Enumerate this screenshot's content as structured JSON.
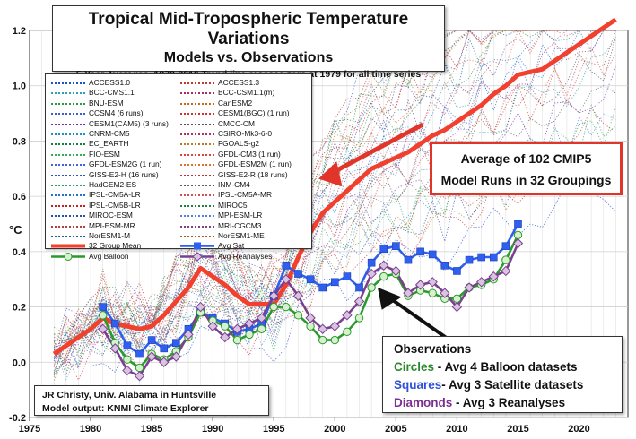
{
  "title": {
    "line1": "Tropical Mid-Tropospheric Temperature Variations",
    "line2": "Models vs. Observations",
    "line3": "5-Year Averages, 1979-2016 Trend line crosses zero at 1979 for all time series"
  },
  "y_unit": "°C",
  "legend": {
    "models": [
      {
        "name": "ACCESS1.0",
        "color": "#1f4fd0"
      },
      {
        "name": "ACCESS1.3",
        "color": "#c0392b"
      },
      {
        "name": "BCC-CMS1.1",
        "color": "#2aa0b0"
      },
      {
        "name": "BCC-CSM1.1(m)",
        "color": "#a02c60"
      },
      {
        "name": "BNU-ESM",
        "color": "#2e9a3c"
      },
      {
        "name": "CanESM2",
        "color": "#c06a1a"
      },
      {
        "name": "CCSM4 (6 runs)",
        "color": "#3b5bd0"
      },
      {
        "name": "CESM1(BGC) (1 run)",
        "color": "#d03030"
      },
      {
        "name": "CESM1(CAM5) (3 runs)",
        "color": "#7a2ab0"
      },
      {
        "name": "CMCC-CM",
        "color": "#555555"
      },
      {
        "name": "CNRM-CM5",
        "color": "#2090c0"
      },
      {
        "name": "CSIRO-Mk3-6-0",
        "color": "#b03060"
      },
      {
        "name": "EC_EARTH",
        "color": "#108040"
      },
      {
        "name": "FGOALS-g2",
        "color": "#b08020"
      },
      {
        "name": "FIO-ESM",
        "color": "#2eb050"
      },
      {
        "name": "GFDL-CM3 (1 run)",
        "color": "#e04040"
      },
      {
        "name": "GFDL-ESM2G (1 run)",
        "color": "#4060e0"
      },
      {
        "name": "GFDL-ESM2M (1 run)",
        "color": "#e07030"
      },
      {
        "name": "GISS-E2-H (16 runs)",
        "color": "#3050c0"
      },
      {
        "name": "GISS-E2-R (18 runs)",
        "color": "#c03040"
      },
      {
        "name": "HadGEM2-ES",
        "color": "#30a060"
      },
      {
        "name": "INM-CM4",
        "color": "#606060"
      },
      {
        "name": "IPSL-CM5A-LR",
        "color": "#2070d0"
      },
      {
        "name": "IPSL-CM5A-MR",
        "color": "#d05050"
      },
      {
        "name": "IPSL-CM5B-LR",
        "color": "#c02020"
      },
      {
        "name": "MIROC5",
        "color": "#208040"
      },
      {
        "name": "MIROC-ESM",
        "color": "#2050b0"
      },
      {
        "name": "MPI-ESM-LR",
        "color": "#5080e0"
      },
      {
        "name": "MPI-ESM-MR",
        "color": "#b04040"
      },
      {
        "name": "MRI-CGCM3",
        "color": "#804080"
      },
      {
        "name": "NorESM1-M",
        "color": "#2060a0"
      },
      {
        "name": "NorESM1-ME",
        "color": "#a06020"
      }
    ],
    "summary": [
      {
        "name": "32 Group Mean",
        "color": "#f2402e",
        "kind": "line"
      },
      {
        "name": "Avg Sat",
        "color": "#2f5ff0",
        "kind": "square"
      },
      {
        "name": "Avg Balloon",
        "color": "#2a9a2a",
        "kind": "circle"
      },
      {
        "name": "Avg Reanalyses",
        "color": "#7b3f8f",
        "kind": "diamond"
      }
    ]
  },
  "annotations": {
    "avg_box": [
      "Average of 102 CMIP5",
      "Model Runs in 32 Groupings"
    ],
    "observations": {
      "heading": "Observations",
      "lines": [
        {
          "key": "Circles",
          "text": " - Avg 4 Balloon datasets",
          "color": "#2a8a2a"
        },
        {
          "key": "Squares",
          "text": "- Avg 3 Satellite datasets",
          "color": "#2f4fd8"
        },
        {
          "key": "Diamonds",
          "text": " - Avg 3 Reanalyses",
          "color": "#7b2f8f"
        }
      ]
    },
    "credit": [
      "JR Christy, Univ. Alabama in Huntsville",
      "Model output: KNMI Climate Explorer"
    ]
  },
  "chart_data": {
    "type": "line",
    "xlim": [
      1975,
      2024
    ],
    "ylim": [
      -0.2,
      1.2
    ],
    "x_ticks": [
      "1975",
      "1980",
      "1985",
      "1990",
      "1995",
      "2000",
      "2005",
      "2010",
      "2015",
      "2020"
    ],
    "y_ticks": [
      "-0.2",
      "0.0",
      "0.2",
      "0.4",
      "0.6",
      "0.8",
      "1.0",
      "1.2"
    ],
    "grid": true,
    "series": [
      {
        "name": "32 Group Mean",
        "color": "#f2402e",
        "x": [
          1977,
          1978,
          1979,
          1980,
          1981,
          1982,
          1983,
          1984,
          1985,
          1986,
          1987,
          1988,
          1989,
          1990,
          1991,
          1992,
          1993,
          1994,
          1995,
          1996,
          1997,
          1998,
          1999,
          2000,
          2001,
          2002,
          2003,
          2004,
          2005,
          2006,
          2007,
          2008,
          2009,
          2010,
          2011,
          2012,
          2013,
          2014,
          2015,
          2016,
          2017,
          2018,
          2019,
          2020,
          2021,
          2022,
          2023
        ],
        "values": [
          0.03,
          0.06,
          0.09,
          0.12,
          0.16,
          0.14,
          0.13,
          0.12,
          0.13,
          0.17,
          0.22,
          0.27,
          0.34,
          0.31,
          0.28,
          0.24,
          0.21,
          0.21,
          0.21,
          0.28,
          0.38,
          0.47,
          0.54,
          0.58,
          0.62,
          0.66,
          0.7,
          0.72,
          0.74,
          0.76,
          0.79,
          0.82,
          0.84,
          0.87,
          0.9,
          0.93,
          0.97,
          1.0,
          1.04,
          1.05,
          1.06,
          1.09,
          1.12,
          1.15,
          1.18,
          1.21,
          1.24
        ]
      },
      {
        "name": "Avg Sat",
        "color": "#2f5ff0",
        "marker": "square",
        "x": [
          1981,
          1982,
          1983,
          1984,
          1985,
          1986,
          1987,
          1988,
          1989,
          1990,
          1991,
          1992,
          1993,
          1994,
          1995,
          1996,
          1997,
          1998,
          1999,
          2000,
          2001,
          2002,
          2003,
          2004,
          2005,
          2006,
          2007,
          2008,
          2009,
          2010,
          2011,
          2012,
          2013,
          2014,
          2015
        ],
        "values": [
          0.2,
          0.14,
          0.06,
          0.03,
          0.08,
          0.05,
          0.07,
          0.12,
          0.18,
          0.16,
          0.14,
          0.11,
          0.12,
          0.14,
          0.24,
          0.35,
          0.32,
          0.3,
          0.27,
          0.29,
          0.31,
          0.27,
          0.36,
          0.41,
          0.42,
          0.37,
          0.4,
          0.39,
          0.35,
          0.33,
          0.37,
          0.38,
          0.38,
          0.42,
          0.5
        ]
      },
      {
        "name": "Avg Balloon",
        "color": "#2a9a2a",
        "marker": "circle",
        "x": [
          1981,
          1982,
          1983,
          1984,
          1985,
          1986,
          1987,
          1988,
          1989,
          1990,
          1991,
          1992,
          1993,
          1994,
          1995,
          1996,
          1997,
          1998,
          1999,
          2000,
          2001,
          2002,
          2003,
          2004,
          2005,
          2006,
          2007,
          2008,
          2009,
          2010,
          2011,
          2012,
          2013,
          2014,
          2015
        ],
        "values": [
          0.17,
          0.07,
          0.01,
          -0.02,
          0.03,
          0.01,
          0.04,
          0.09,
          0.18,
          0.15,
          0.13,
          0.08,
          0.1,
          0.12,
          0.2,
          0.2,
          0.17,
          0.13,
          0.08,
          0.08,
          0.11,
          0.16,
          0.27,
          0.31,
          0.32,
          0.24,
          0.26,
          0.25,
          0.23,
          0.23,
          0.27,
          0.28,
          0.3,
          0.37,
          0.46
        ]
      },
      {
        "name": "Avg Reanalyses",
        "color": "#7b3f8f",
        "marker": "diamond",
        "x": [
          1981,
          1982,
          1983,
          1984,
          1985,
          1986,
          1987,
          1988,
          1989,
          1990,
          1991,
          1992,
          1993,
          1994,
          1995,
          1996,
          1997,
          1998,
          1999,
          2000,
          2001,
          2002,
          2003,
          2004,
          2005,
          2006,
          2007,
          2008,
          2009,
          2010,
          2011,
          2012,
          2013,
          2014,
          2015
        ],
        "values": [
          0.12,
          0.05,
          -0.03,
          -0.05,
          0.02,
          0.0,
          0.02,
          0.1,
          0.2,
          0.13,
          0.09,
          0.12,
          0.14,
          0.16,
          0.24,
          0.3,
          0.24,
          0.16,
          0.12,
          0.13,
          0.17,
          0.22,
          0.32,
          0.35,
          0.33,
          0.25,
          0.28,
          0.29,
          0.25,
          0.2,
          0.27,
          0.29,
          0.31,
          0.33,
          0.43
        ]
      }
    ]
  }
}
